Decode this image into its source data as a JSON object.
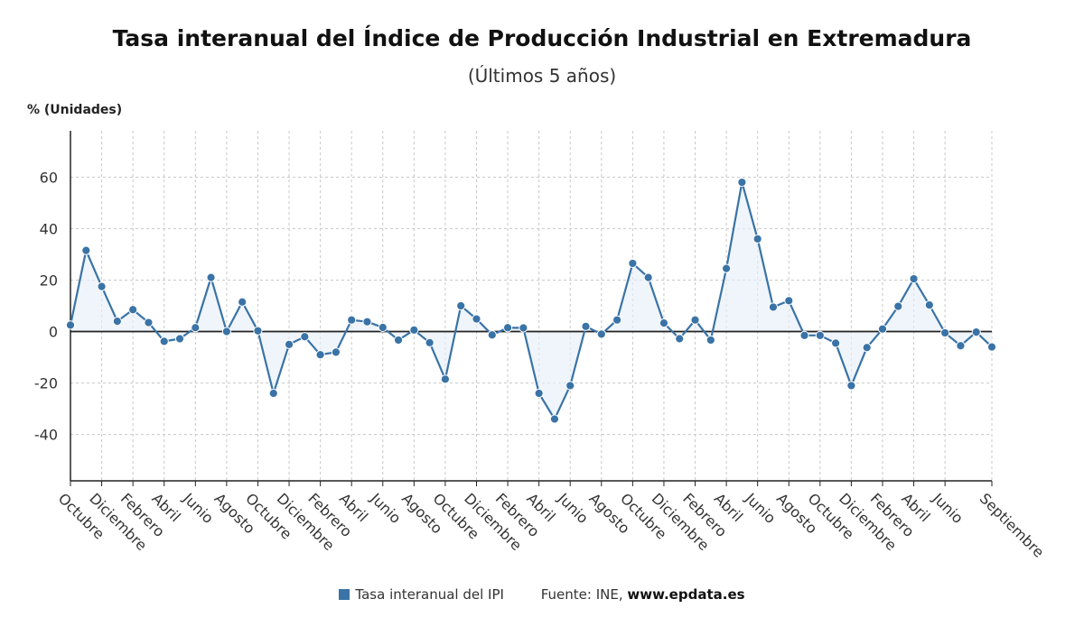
{
  "chart_data": {
    "type": "line",
    "title": "Tasa interanual del Índice de Producción Industrial en Extremadura",
    "subtitle": "(Últimos 5 años)",
    "ylabel": "% (Unidades)",
    "ylim": [
      -58,
      78
    ],
    "yticks": [
      -40,
      -20,
      0,
      20,
      40,
      60
    ],
    "grid": true,
    "x_labels": [
      "Octubre",
      "Diciembre",
      "Febrero",
      "Abril",
      "Junio",
      "Agosto",
      "Octubre",
      "Diciembre",
      "Febrero",
      "Abril",
      "Junio",
      "Agosto",
      "Octubre",
      "Diciembre",
      "Febrero",
      "Abril",
      "Junio",
      "Agosto",
      "Octubre",
      "Diciembre",
      "Febrero",
      "Abril",
      "Junio",
      "Agosto",
      "Octubre",
      "Diciembre",
      "Febrero",
      "Abril",
      "Junio",
      "Septiembre"
    ],
    "x_label_indices": [
      0,
      2,
      4,
      6,
      8,
      10,
      12,
      14,
      16,
      18,
      20,
      22,
      24,
      26,
      28,
      30,
      32,
      34,
      36,
      38,
      40,
      42,
      44,
      46,
      48,
      50,
      52,
      54,
      56,
      59
    ],
    "series": [
      {
        "name": "Tasa interanual del IPI",
        "color": "#3a73a6",
        "values": [
          2.5,
          31.5,
          17.5,
          4,
          8.5,
          3.5,
          -3.8,
          -2.8,
          1.5,
          21,
          0,
          11.5,
          0.3,
          -24,
          -5,
          -2,
          -9,
          -8,
          4.5,
          3.8,
          1.6,
          -3.3,
          0.6,
          -4.3,
          -18.5,
          10,
          4.9,
          -1.3,
          1.5,
          1.4,
          -24,
          -34,
          -21,
          2,
          -1,
          4.5,
          26.5,
          21,
          3.3,
          -2.8,
          4.5,
          -3.3,
          24.5,
          58,
          36,
          9.5,
          12,
          -1.5,
          -1.5,
          -4.5,
          -21,
          -6.2,
          1,
          9.8,
          20.5,
          10.3,
          -0.5,
          -5.5,
          -0.2,
          -6
        ]
      }
    ],
    "legend": {
      "label": "Tasa interanual del IPI",
      "source_prefix": "Fuente: INE,",
      "source_site": "www.epdata.es",
      "position": "bottom"
    }
  }
}
